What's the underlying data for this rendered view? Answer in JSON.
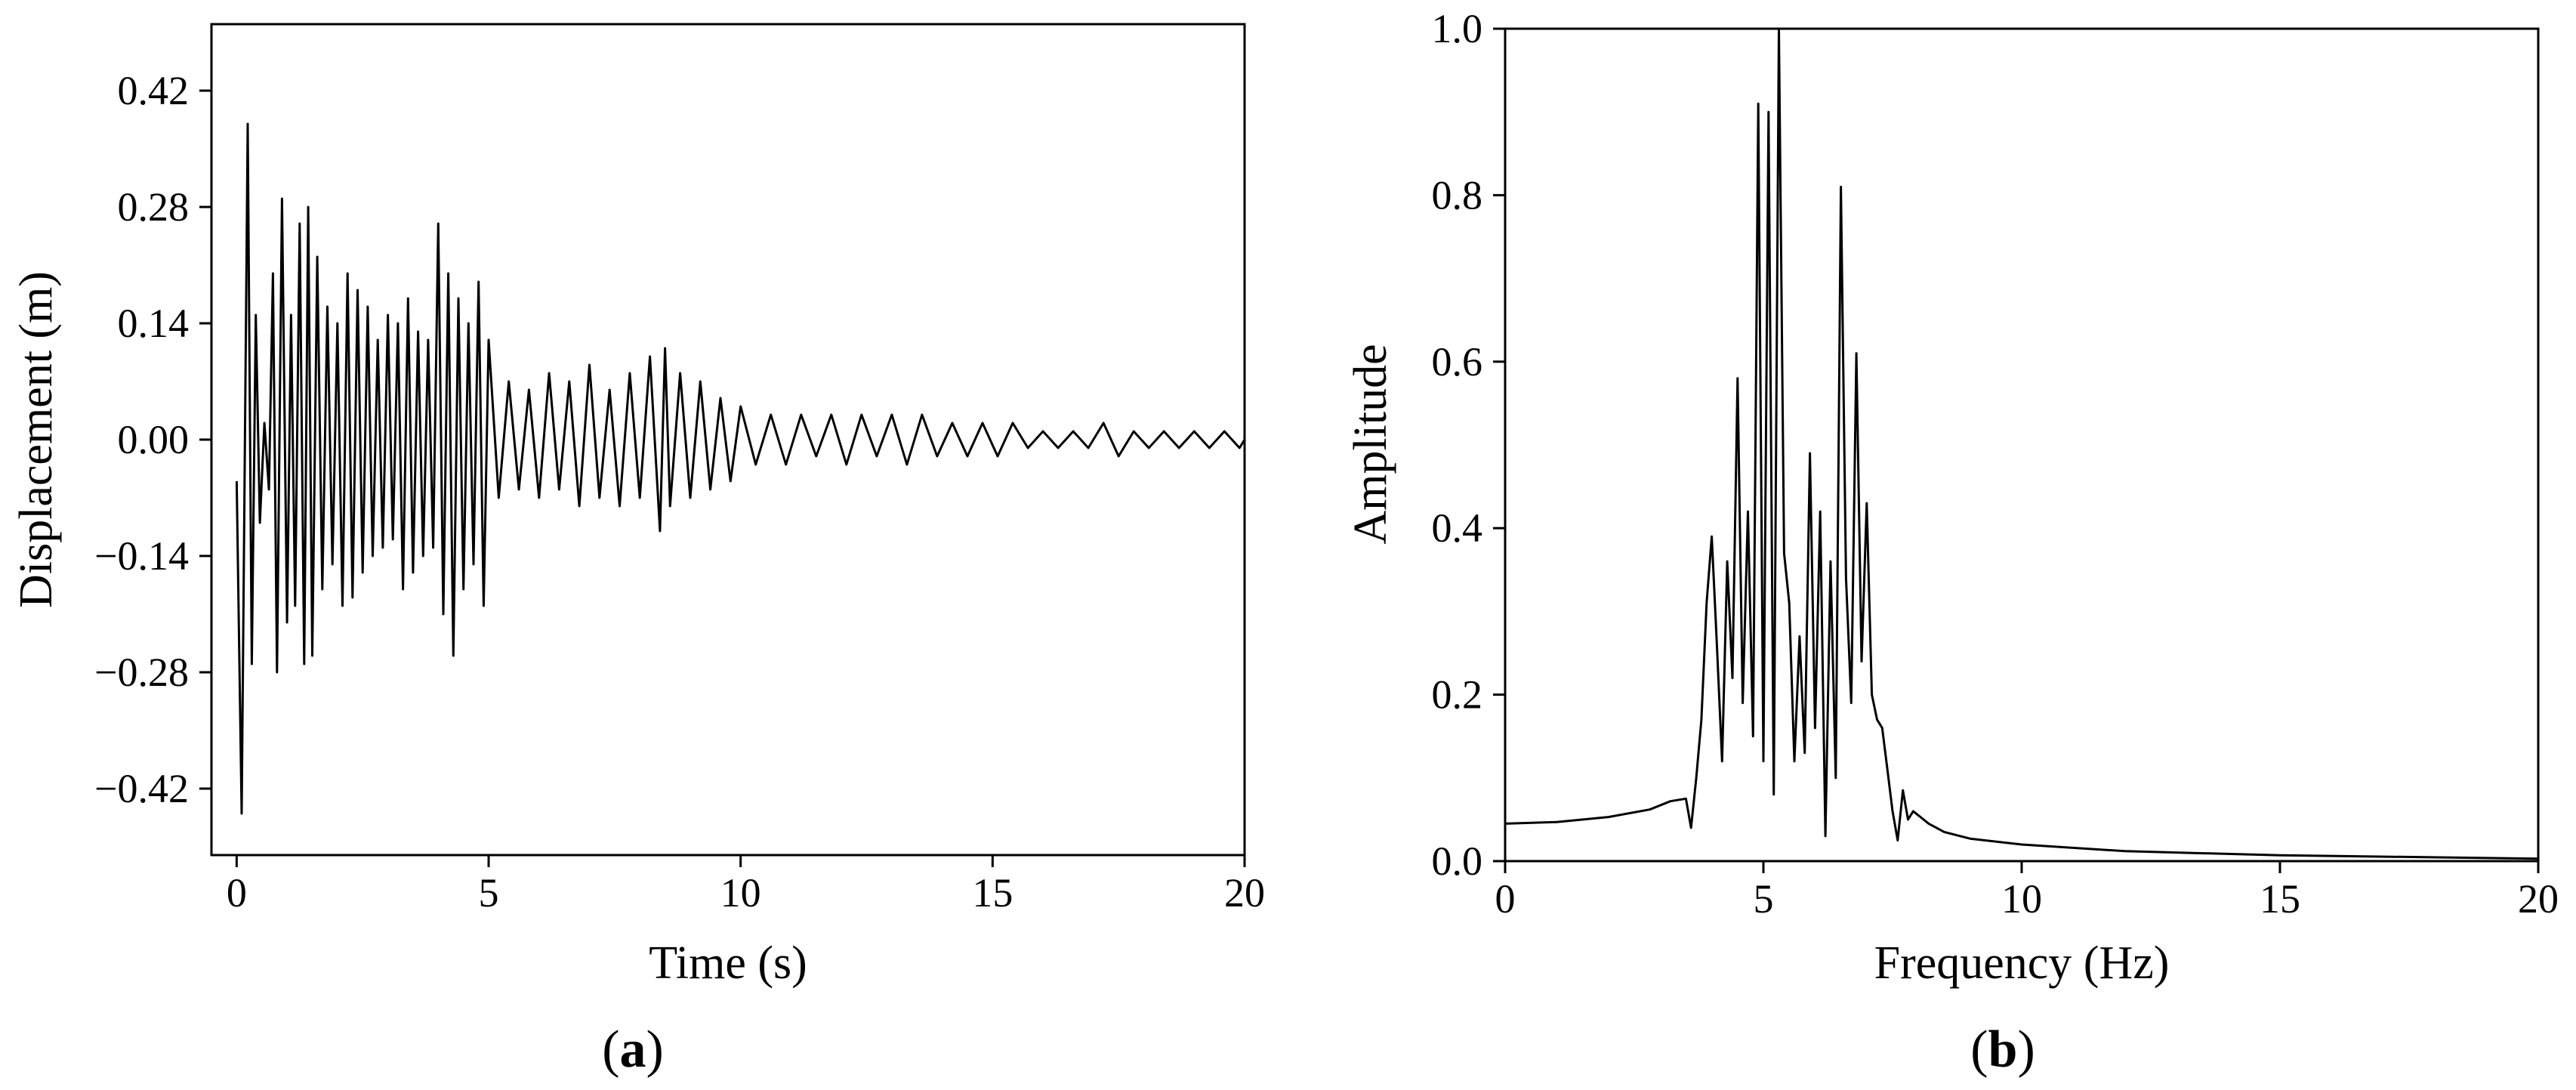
{
  "figure": {
    "panel_a_label": {
      "open": "(",
      "letter": "a",
      "close": ")"
    },
    "panel_b_label": {
      "open": "(",
      "letter": "b",
      "close": ")"
    }
  },
  "chart_data": [
    {
      "type": "line",
      "xlabel": "Time (s)",
      "ylabel": "Displacement (m)",
      "xlim": [
        -0.5,
        20
      ],
      "ylim": [
        -0.5,
        0.5
      ],
      "xticks": [
        0,
        5,
        10,
        15,
        20
      ],
      "xtick_labels": [
        "0",
        "5",
        "10",
        "15",
        "20"
      ],
      "yticks": [
        0.42,
        0.28,
        0.14,
        0.0,
        -0.14,
        -0.28,
        -0.42
      ],
      "ytick_labels": [
        "0.42",
        "0.28",
        "0.14",
        "0.00",
        "−0.14",
        "−0.28",
        "−0.42"
      ],
      "grid": false,
      "series": [
        {
          "color": "#000000",
          "x": [
            0.0,
            0.1,
            0.22,
            0.3,
            0.38,
            0.46,
            0.55,
            0.64,
            0.72,
            0.8,
            0.9,
            1.0,
            1.08,
            1.16,
            1.25,
            1.34,
            1.42,
            1.5,
            1.6,
            1.7,
            1.8,
            1.9,
            2.0,
            2.1,
            2.2,
            2.3,
            2.4,
            2.5,
            2.6,
            2.7,
            2.8,
            2.9,
            3.0,
            3.1,
            3.2,
            3.3,
            3.4,
            3.5,
            3.6,
            3.7,
            3.8,
            3.9,
            4.0,
            4.1,
            4.2,
            4.3,
            4.4,
            4.5,
            4.6,
            4.7,
            4.8,
            4.9,
            5.0,
            5.2,
            5.4,
            5.6,
            5.8,
            6.0,
            6.2,
            6.4,
            6.6,
            6.8,
            7.0,
            7.2,
            7.4,
            7.6,
            7.8,
            8.0,
            8.2,
            8.4,
            8.5,
            8.6,
            8.8,
            9.0,
            9.2,
            9.4,
            9.6,
            9.8,
            10.0,
            10.3,
            10.6,
            10.9,
            11.2,
            11.5,
            11.8,
            12.1,
            12.4,
            12.7,
            13.0,
            13.3,
            13.6,
            13.9,
            14.2,
            14.5,
            14.8,
            15.1,
            15.4,
            15.7,
            16.0,
            16.3,
            16.6,
            16.9,
            17.2,
            17.5,
            17.8,
            18.1,
            18.4,
            18.7,
            19.0,
            19.3,
            19.6,
            19.9,
            20.0
          ],
          "y": [
            -0.05,
            -0.45,
            0.38,
            -0.27,
            0.15,
            -0.1,
            0.02,
            -0.06,
            0.2,
            -0.28,
            0.29,
            -0.22,
            0.15,
            -0.2,
            0.26,
            -0.27,
            0.28,
            -0.26,
            0.22,
            -0.18,
            0.16,
            -0.15,
            0.14,
            -0.2,
            0.2,
            -0.19,
            0.18,
            -0.16,
            0.16,
            -0.14,
            0.12,
            -0.13,
            0.15,
            -0.12,
            0.14,
            -0.18,
            0.17,
            -0.16,
            0.13,
            -0.14,
            0.12,
            -0.13,
            0.26,
            -0.21,
            0.2,
            -0.26,
            0.17,
            -0.18,
            0.14,
            -0.15,
            0.19,
            -0.2,
            0.12,
            -0.07,
            0.07,
            -0.06,
            0.06,
            -0.07,
            0.08,
            -0.06,
            0.07,
            -0.08,
            0.09,
            -0.07,
            0.06,
            -0.08,
            0.08,
            -0.07,
            0.1,
            -0.11,
            0.11,
            -0.08,
            0.08,
            -0.07,
            0.07,
            -0.06,
            0.05,
            -0.05,
            0.04,
            -0.03,
            0.03,
            -0.03,
            0.03,
            -0.02,
            0.03,
            -0.03,
            0.03,
            -0.02,
            0.03,
            -0.03,
            0.03,
            -0.02,
            0.02,
            -0.02,
            0.02,
            -0.02,
            0.02,
            -0.01,
            0.01,
            -0.01,
            0.01,
            -0.01,
            0.02,
            -0.02,
            0.01,
            -0.01,
            0.01,
            -0.01,
            0.01,
            -0.01,
            0.01,
            -0.01,
            0.0
          ]
        }
      ]
    },
    {
      "type": "line",
      "xlabel": "Frequency (Hz)",
      "ylabel": "Amplitude",
      "xlim": [
        0,
        20
      ],
      "ylim": [
        0,
        1.0
      ],
      "xticks": [
        0,
        5,
        10,
        15,
        20
      ],
      "xtick_labels": [
        "0",
        "5",
        "10",
        "15",
        "20"
      ],
      "yticks": [
        0.0,
        0.2,
        0.4,
        0.6,
        0.8,
        1.0
      ],
      "ytick_labels": [
        "0.0",
        "0.2",
        "0.4",
        "0.6",
        "0.8",
        "1.0"
      ],
      "grid": false,
      "series": [
        {
          "color": "#000000",
          "x": [
            0.0,
            1.0,
            2.0,
            2.8,
            3.2,
            3.5,
            3.6,
            3.7,
            3.8,
            3.9,
            4.0,
            4.1,
            4.2,
            4.3,
            4.4,
            4.5,
            4.6,
            4.7,
            4.8,
            4.9,
            5.0,
            5.1,
            5.2,
            5.3,
            5.4,
            5.5,
            5.6,
            5.7,
            5.8,
            5.9,
            6.0,
            6.1,
            6.2,
            6.3,
            6.4,
            6.5,
            6.6,
            6.7,
            6.8,
            6.9,
            7.0,
            7.1,
            7.2,
            7.3,
            7.4,
            7.5,
            7.6,
            7.7,
            7.8,
            7.9,
            8.0,
            8.2,
            8.5,
            9.0,
            10.0,
            12.0,
            15.0,
            20.0
          ],
          "y": [
            0.045,
            0.047,
            0.053,
            0.062,
            0.072,
            0.075,
            0.04,
            0.1,
            0.17,
            0.31,
            0.39,
            0.26,
            0.12,
            0.36,
            0.22,
            0.58,
            0.19,
            0.42,
            0.15,
            0.91,
            0.12,
            0.9,
            0.08,
            1.0,
            0.37,
            0.31,
            0.12,
            0.27,
            0.13,
            0.49,
            0.16,
            0.42,
            0.03,
            0.36,
            0.1,
            0.81,
            0.34,
            0.19,
            0.61,
            0.24,
            0.43,
            0.2,
            0.17,
            0.16,
            0.11,
            0.06,
            0.025,
            0.085,
            0.05,
            0.06,
            0.055,
            0.045,
            0.035,
            0.027,
            0.02,
            0.012,
            0.007,
            0.003
          ]
        }
      ]
    }
  ]
}
